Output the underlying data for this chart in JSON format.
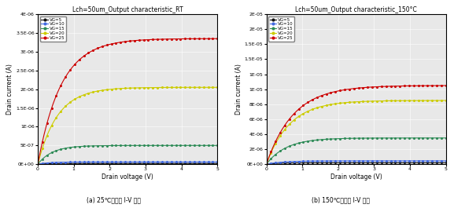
{
  "title_left": "Lch=50um_Output characteristic_RT",
  "title_right": "Lch=50um_Output characteristic_150°C",
  "xlabel": "Drain voltage (V)",
  "ylabel": "Drain current (A)",
  "caption_left": "(a) 25℃에서의 I-V 특성",
  "caption_right": "(b) 150℃에서의 I-V 특성",
  "xlim": [
    0,
    5
  ],
  "ylim_left": [
    0,
    4e-06
  ],
  "ylim_right": [
    0,
    2e-05
  ],
  "yticks_left": [
    0,
    5e-07,
    1e-06,
    1.5e-06,
    2e-06,
    2.5e-06,
    3e-06,
    3.5e-06,
    4e-06
  ],
  "yticks_right": [
    0,
    2e-06,
    4e-06,
    6e-06,
    8e-06,
    1e-05,
    1.2e-05,
    1.4e-05,
    1.6e-05,
    1.8e-05,
    2e-05
  ],
  "vg_labels": [
    "VG=5",
    "VG=10",
    "VG=15",
    "VG=20",
    "VG=25"
  ],
  "colors": [
    "#111111",
    "#4169E1",
    "#2E8B57",
    "#CCCC00",
    "#CC0000"
  ],
  "vg_sat_rt": [
    2e-08,
    6e-08,
    5e-07,
    2.05e-06,
    3.35e-06
  ],
  "vg_knees_rt": [
    0.25,
    0.3,
    0.4,
    0.55,
    0.65
  ],
  "vg_sat_ht": [
    2e-07,
    4.5e-07,
    3.5e-06,
    8.5e-06,
    1.05e-05
  ],
  "vg_knees_ht": [
    0.35,
    0.45,
    0.55,
    0.65,
    0.75
  ],
  "plot_bg": "#e8e8e8",
  "fig_bg": "#ffffff"
}
